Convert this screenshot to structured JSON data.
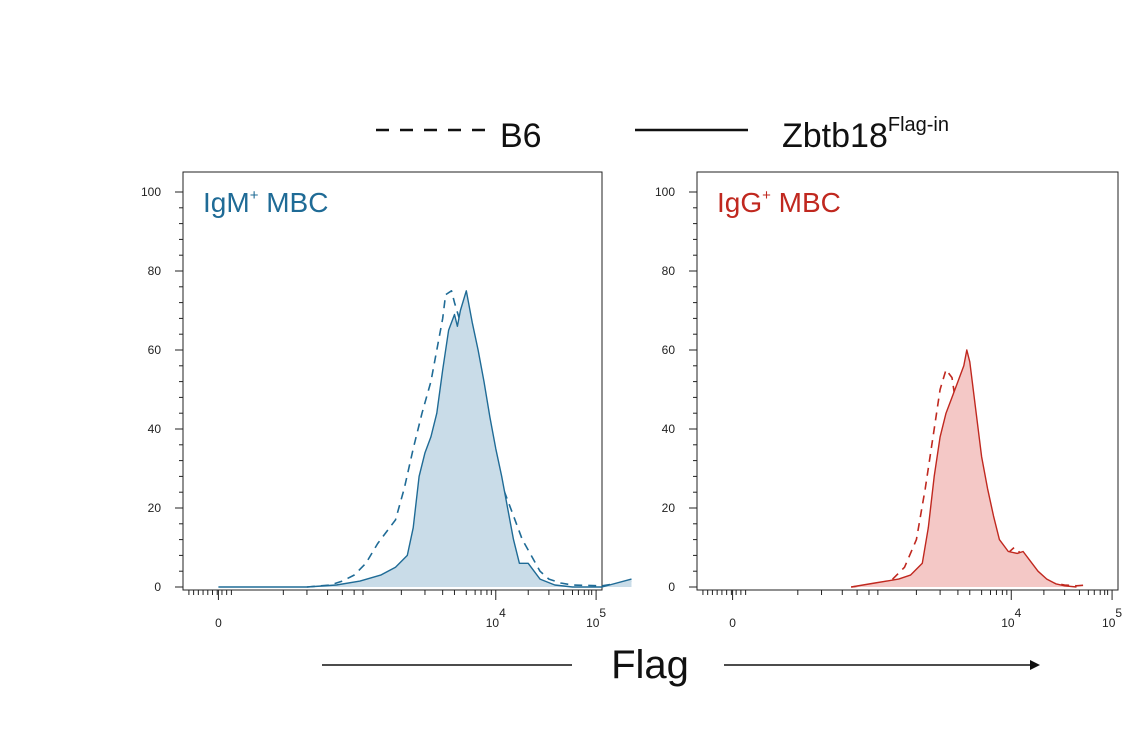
{
  "legend": {
    "dashed_label": "B6",
    "solid_label": "Zbtb18",
    "solid_label_superscript": "Flag-in"
  },
  "x_axis_title": "Flag",
  "colors": {
    "igm": "#1f6b96",
    "igm_fill": "#c9dce8",
    "igg": "#c0281f",
    "igg_fill": "#f4c8c6",
    "axis": "#222222"
  },
  "chart_data": [
    {
      "type": "area",
      "panel": "IgM+ MBC",
      "title": "IgM",
      "title_superscript": "+",
      "title_suffix": " MBC",
      "xscale": "biexponential",
      "x_tick_labels": [
        {
          "text": "0",
          "sup": ""
        },
        {
          "text": "10",
          "sup": "4"
        },
        {
          "text": "10",
          "sup": "5"
        }
      ],
      "y_tick_labels": [
        "0",
        "20",
        "40",
        "60",
        "80",
        "100"
      ],
      "ylim": [
        0,
        100
      ],
      "series": [
        {
          "name": "B6",
          "style": "dashed",
          "fill": false,
          "x": [
            0.3,
            0.38,
            0.42,
            0.46,
            0.5,
            0.54,
            0.56,
            0.6,
            0.63,
            0.66,
            0.69,
            0.72,
            0.74,
            0.76,
            0.77,
            0.79,
            0.8,
            0.82,
            0.83,
            0.84,
            0.86,
            0.88,
            0.9,
            0.92,
            0.95,
            0.97,
            1.0,
            1.03,
            1.06,
            1.09,
            1.12,
            1.16,
            1.2,
            1.3,
            1.4
          ],
          "y": [
            0.0,
            0.5,
            1.5,
            3.0,
            6.0,
            11.0,
            13.0,
            17.0,
            25.0,
            35.0,
            44.0,
            52.0,
            60.0,
            68.0,
            74.0,
            75.0,
            72.0,
            67.0,
            70.0,
            69.0,
            60.0,
            47.0,
            42.0,
            35.0,
            27.0,
            24.0,
            18.0,
            12.0,
            8.0,
            4.0,
            2.0,
            1.0,
            0.5,
            0.3,
            1.5
          ]
        },
        {
          "name": "Zbtb18 Flag-in",
          "style": "solid",
          "fill": true,
          "x": [
            0.0,
            0.3,
            0.4,
            0.48,
            0.55,
            0.6,
            0.64,
            0.66,
            0.68,
            0.7,
            0.72,
            0.74,
            0.76,
            0.78,
            0.8,
            0.81,
            0.82,
            0.84,
            0.86,
            0.88,
            0.9,
            0.92,
            0.94,
            0.96,
            0.98,
            1.0,
            1.02,
            1.05,
            1.09,
            1.14,
            1.2,
            1.3,
            1.4
          ],
          "y": [
            0.0,
            0.0,
            0.5,
            1.5,
            3.0,
            5.0,
            8.0,
            15.0,
            28.0,
            34.0,
            38.0,
            44.0,
            55.0,
            65.0,
            69.0,
            66.0,
            70.0,
            75.0,
            67.0,
            60.0,
            52.0,
            43.0,
            35.0,
            28.0,
            20.0,
            12.0,
            6.0,
            6.0,
            2.0,
            0.5,
            0.0,
            0.0,
            2.0
          ]
        }
      ]
    },
    {
      "type": "area",
      "panel": "IgG+ MBC",
      "title": "IgG",
      "title_superscript": "+",
      "title_suffix": " MBC",
      "xscale": "biexponential",
      "x_tick_labels": [
        {
          "text": "0",
          "sup": ""
        },
        {
          "text": "10",
          "sup": "4"
        },
        {
          "text": "10",
          "sup": "5"
        }
      ],
      "y_tick_labels": [
        "0",
        "20",
        "40",
        "60",
        "80",
        "100"
      ],
      "ylim": [
        0,
        100
      ],
      "series": [
        {
          "name": "B6",
          "style": "dashed",
          "fill": false,
          "x": [
            0.4,
            0.46,
            0.5,
            0.54,
            0.58,
            0.62,
            0.65,
            0.68,
            0.7,
            0.72,
            0.74,
            0.75,
            0.77,
            0.79,
            0.81,
            0.83,
            0.86,
            0.89,
            0.92,
            0.95,
            0.98,
            1.01,
            1.04,
            1.08,
            1.12,
            1.16,
            1.2
          ],
          "y": [
            0.0,
            0.5,
            1.0,
            2.0,
            5.0,
            12.0,
            25.0,
            40.0,
            50.0,
            55.0,
            53.0,
            48.0,
            52.0,
            46.0,
            38.0,
            28.0,
            12.0,
            7.0,
            8.0,
            10.0,
            8.0,
            5.0,
            2.5,
            1.0,
            0.5,
            0.3,
            0.5
          ]
        },
        {
          "name": "Zbtb18 Flag-in",
          "style": "solid",
          "fill": true,
          "x": [
            0.4,
            0.48,
            0.52,
            0.56,
            0.6,
            0.64,
            0.66,
            0.68,
            0.7,
            0.72,
            0.74,
            0.76,
            0.78,
            0.79,
            0.8,
            0.82,
            0.84,
            0.86,
            0.88,
            0.9,
            0.93,
            0.96,
            0.98,
            1.0,
            1.03,
            1.06,
            1.09,
            1.12,
            1.16
          ],
          "y": [
            0.0,
            1.0,
            1.5,
            2.0,
            3.0,
            6.0,
            15.0,
            28.0,
            38.0,
            44.0,
            48.0,
            52.0,
            56.0,
            60.0,
            57.0,
            45.0,
            33.0,
            25.0,
            18.0,
            12.0,
            9.0,
            8.5,
            9.0,
            7.0,
            4.0,
            2.0,
            0.8,
            0.3,
            0.0
          ]
        }
      ]
    }
  ]
}
